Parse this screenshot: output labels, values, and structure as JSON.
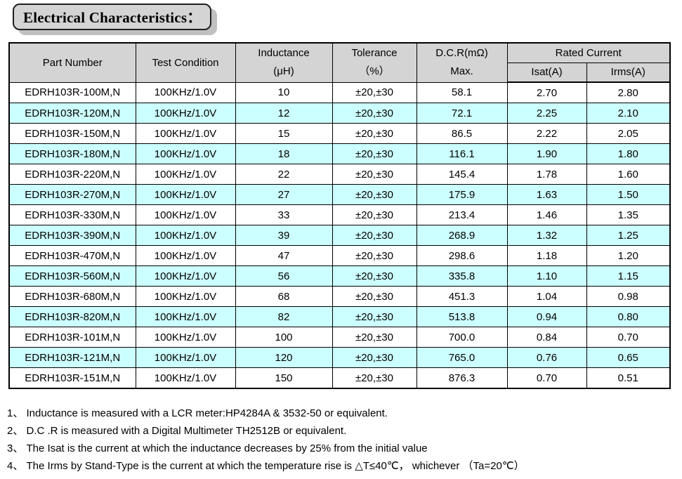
{
  "title": "Electrical Characteristics：",
  "table": {
    "headers": {
      "part_number": "Part Number",
      "test_condition": "Test Condition",
      "inductance_line1": "Inductance",
      "inductance_line2": "(μH)",
      "tolerance_line1": "Tolerance",
      "tolerance_line2": "（%）",
      "dcr_line1": "D.C.R(mΩ)",
      "dcr_line2": "Max.",
      "rated_current": "Rated Current",
      "isat": "Isat(A)",
      "irms": "Irms(A)"
    },
    "rows": [
      [
        "EDRH103R-100M,N",
        "100KHz/1.0V",
        "10",
        "±20,±30",
        "58.1",
        "2.70",
        "2.80"
      ],
      [
        "EDRH103R-120M,N",
        "100KHz/1.0V",
        "12",
        "±20,±30",
        "72.1",
        "2.25",
        "2.10"
      ],
      [
        "EDRH103R-150M,N",
        "100KHz/1.0V",
        "15",
        "±20,±30",
        "86.5",
        "2.22",
        "2.05"
      ],
      [
        "EDRH103R-180M,N",
        "100KHz/1.0V",
        "18",
        "±20,±30",
        "116.1",
        "1.90",
        "1.80"
      ],
      [
        "EDRH103R-220M,N",
        "100KHz/1.0V",
        "22",
        "±20,±30",
        "145.4",
        "1.78",
        "1.60"
      ],
      [
        "EDRH103R-270M,N",
        "100KHz/1.0V",
        "27",
        "±20,±30",
        "175.9",
        "1.63",
        "1.50"
      ],
      [
        "EDRH103R-330M,N",
        "100KHz/1.0V",
        "33",
        "±20,±30",
        "213.4",
        "1.46",
        "1.35"
      ],
      [
        "EDRH103R-390M,N",
        "100KHz/1.0V",
        "39",
        "±20,±30",
        "268.9",
        "1.32",
        "1.25"
      ],
      [
        "EDRH103R-470M,N",
        "100KHz/1.0V",
        "47",
        "±20,±30",
        "298.6",
        "1.18",
        "1.20"
      ],
      [
        "EDRH103R-560M,N",
        "100KHz/1.0V",
        "56",
        "±20,±30",
        "335.8",
        "1.10",
        "1.15"
      ],
      [
        "EDRH103R-680M,N",
        "100KHz/1.0V",
        "68",
        "±20,±30",
        "451.3",
        "1.04",
        "0.98"
      ],
      [
        "EDRH103R-820M,N",
        "100KHz/1.0V",
        "82",
        "±20,±30",
        "513.8",
        "0.94",
        "0.80"
      ],
      [
        "EDRH103R-101M,N",
        "100KHz/1.0V",
        "100",
        "±20,±30",
        "700.0",
        "0.84",
        "0.70"
      ],
      [
        "EDRH103R-121M,N",
        "100KHz/1.0V",
        "120",
        "±20,±30",
        "765.0",
        "0.76",
        "0.65"
      ],
      [
        "EDRH103R-151M,N",
        "100KHz/1.0V",
        "150",
        "±20,±30",
        "876.3",
        "0.70",
        "0.51"
      ]
    ]
  },
  "notes": [
    "1、 Inductance is measured with a LCR meter:HP4284A & 3532-50 or equivalent.",
    "2、 D.C .R is measured with a Digital Multimeter TH2512B or equivalent.",
    "3、 The Isat is the current at which the inductance decreases by 25% from the initial value",
    "4、 The Irms by Stand-Type is the current at which the temperature rise is △T≤40℃， whichever （Ta=20℃）"
  ],
  "colors": {
    "header_bg": "#d4d4d4",
    "row_alt_bg": "#ccffff",
    "row_bg": "#ffffff",
    "border": "#000000",
    "title_box_bg": "#d4d4d4",
    "title_shadow": "#c0c0c0"
  }
}
